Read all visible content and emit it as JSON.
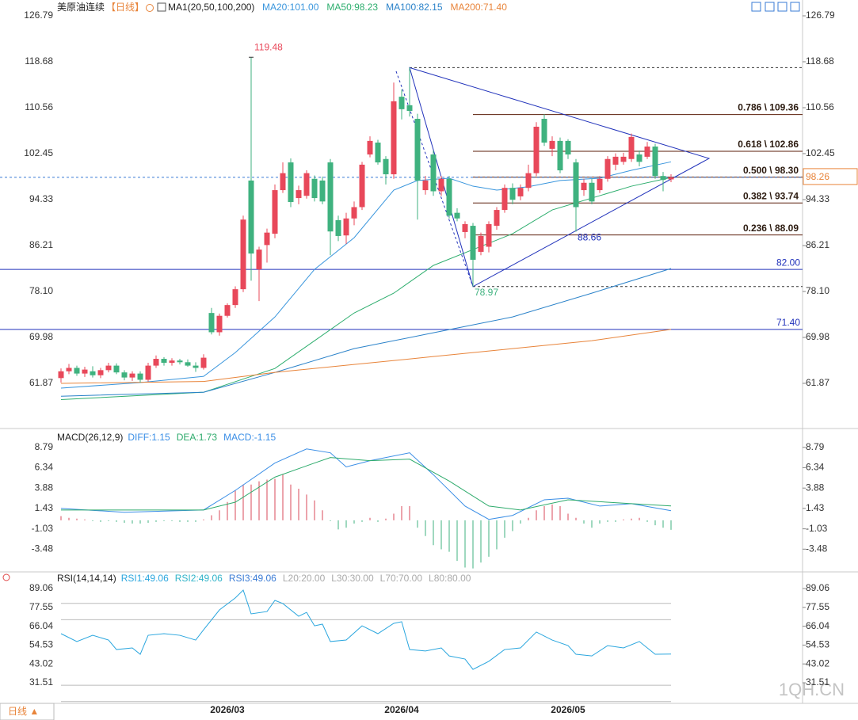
{
  "toolbar": {
    "title": "美原油连续",
    "period": "【日线】",
    "indicator": "MA1(20,50,100,200)"
  },
  "footer": {
    "period_button": "日线 ▲",
    "watermark": "1QH.CN"
  },
  "chart_data": [
    {
      "type": "candlestick",
      "categories": [
        null,
        null,
        null,
        null,
        null,
        null,
        null,
        null,
        null,
        null,
        null,
        null,
        null,
        null,
        null,
        null,
        null,
        null,
        null,
        null,
        null,
        "2026/03",
        null,
        null,
        null,
        null,
        null,
        null,
        null,
        null,
        null,
        null,
        null,
        null,
        null,
        null,
        null,
        null,
        null,
        null,
        null,
        null,
        null,
        "2026/04",
        null,
        null,
        null,
        null,
        null,
        null,
        null,
        null,
        null,
        null,
        null,
        null,
        null,
        null,
        null,
        null,
        null,
        null,
        null,
        null,
        "2026/05",
        null,
        null,
        null,
        null,
        null,
        null,
        null,
        null,
        null,
        null,
        null,
        null,
        null
      ],
      "ohlc": [
        [
          62.8,
          64.5,
          62.0,
          64.0
        ],
        [
          64.0,
          65.3,
          63.5,
          64.6
        ],
        [
          64.6,
          65.0,
          63.2,
          63.6
        ],
        [
          63.6,
          64.8,
          63.0,
          64.3
        ],
        [
          64.0,
          64.9,
          62.9,
          63.3
        ],
        [
          63.3,
          64.6,
          62.8,
          64.2
        ],
        [
          64.2,
          65.5,
          63.8,
          65.0
        ],
        [
          65.0,
          65.4,
          63.5,
          63.8
        ],
        [
          63.8,
          64.2,
          62.4,
          62.9
        ],
        [
          62.9,
          64.0,
          62.3,
          63.6
        ],
        [
          63.6,
          64.0,
          62.0,
          62.5
        ],
        [
          62.5,
          65.5,
          62.2,
          65.0
        ],
        [
          65.0,
          66.8,
          64.6,
          66.2
        ],
        [
          66.2,
          66.5,
          65.0,
          65.5
        ],
        [
          65.5,
          66.3,
          65.0,
          65.9
        ],
        [
          65.9,
          66.2,
          65.2,
          65.6
        ],
        [
          65.6,
          66.1,
          64.8,
          65.0
        ],
        [
          65.0,
          65.6,
          63.9,
          64.6
        ],
        [
          64.6,
          67.0,
          64.3,
          66.4
        ],
        [
          74.3,
          75.2,
          70.5,
          70.9
        ],
        [
          70.9,
          74.2,
          70.3,
          73.8
        ],
        [
          73.8,
          76.0,
          73.5,
          75.7
        ],
        [
          75.7,
          79.0,
          75.2,
          78.5
        ],
        [
          78.5,
          91.5,
          78.0,
          90.8
        ],
        [
          97.7,
          119.48,
          80.0,
          84.8
        ],
        [
          82.0,
          86.0,
          76.4,
          85.5
        ],
        [
          86.3,
          89.2,
          83.2,
          88.5
        ],
        [
          88.3,
          97.0,
          87.5,
          96.0
        ],
        [
          96.0,
          100.9,
          95.5,
          99.0
        ],
        [
          100.9,
          101.6,
          93.0,
          93.9
        ],
        [
          94.6,
          96.8,
          93.5,
          96.0
        ],
        [
          95.0,
          99.5,
          94.5,
          99.0
        ],
        [
          98.0,
          98.6,
          94.0,
          94.6
        ],
        [
          97.7,
          98.4,
          93.5,
          94.0
        ],
        [
          100.9,
          101.5,
          84.5,
          88.7
        ],
        [
          90.7,
          91.5,
          87.0,
          87.9
        ],
        [
          88.0,
          92.0,
          86.5,
          91.0
        ],
        [
          91.0,
          94.0,
          89.8,
          93.0
        ],
        [
          93.0,
          101.0,
          92.5,
          100.5
        ],
        [
          102.3,
          105.5,
          101.8,
          104.7
        ],
        [
          104.4,
          104.9,
          100.5,
          100.9
        ],
        [
          101.5,
          102.0,
          97.0,
          98.8
        ],
        [
          98.8,
          115.0,
          98.0,
          111.7
        ],
        [
          112.5,
          113.8,
          108.5,
          110.3
        ],
        [
          111.0,
          117.64,
          109.0,
          110.0
        ],
        [
          108.6,
          109.5,
          90.8,
          97.7
        ],
        [
          96.0,
          98.5,
          95.2,
          97.7
        ],
        [
          102.3,
          103.0,
          95.0,
          95.8
        ],
        [
          95.8,
          98.5,
          95.0,
          98.0
        ],
        [
          98.0,
          98.5,
          91.0,
          91.5
        ],
        [
          92.0,
          92.8,
          90.5,
          91.0
        ],
        [
          88.6,
          90.5,
          87.5,
          90.0
        ],
        [
          89.7,
          90.2,
          78.97,
          83.7
        ],
        [
          85.1,
          88.5,
          84.5,
          87.9
        ],
        [
          86.0,
          90.5,
          85.0,
          90.0
        ],
        [
          89.7,
          93.0,
          89.0,
          92.5
        ],
        [
          92.5,
          97.0,
          92.0,
          96.4
        ],
        [
          96.4,
          97.2,
          93.5,
          94.3
        ],
        [
          94.9,
          97.0,
          94.2,
          96.4
        ],
        [
          96.4,
          100.5,
          95.8,
          99.0
        ],
        [
          99.0,
          108.0,
          98.5,
          107.2
        ],
        [
          108.6,
          109.4,
          103.8,
          104.4
        ],
        [
          103.3,
          105.5,
          102.0,
          104.7
        ],
        [
          104.7,
          105.3,
          99.0,
          99.5
        ],
        [
          104.7,
          105.0,
          101.5,
          102.3
        ],
        [
          100.9,
          101.5,
          88.66,
          93.0
        ],
        [
          96.0,
          98.0,
          95.0,
          97.3
        ],
        [
          97.3,
          98.0,
          93.5,
          94.0
        ],
        [
          96.0,
          98.5,
          95.5,
          98.0
        ],
        [
          98.0,
          102.0,
          97.5,
          101.5
        ],
        [
          100.5,
          102.5,
          99.5,
          101.9
        ],
        [
          101.0,
          102.6,
          100.5,
          101.9
        ],
        [
          101.5,
          106.0,
          101.0,
          105.4
        ],
        [
          102.3,
          103.0,
          100.2,
          101.0
        ],
        [
          101.9,
          104.5,
          101.5,
          103.7
        ],
        [
          103.7,
          104.2,
          98.0,
          98.5
        ],
        [
          98.5,
          99.2,
          95.8,
          97.8
        ],
        [
          97.9,
          98.8,
          97.4,
          98.26
        ]
      ],
      "up_color": "#e8485a",
      "down_color": "#3fb27f",
      "ylim": [
        54.03,
        128.89
      ],
      "yticks": [
        126.79,
        {
          "value": 118.68,
          "label": "118.68"
        },
        110.56,
        102.45,
        94.33,
        86.21,
        {
          "value": 78.1,
          "label": "78.10"
        },
        69.98,
        61.87
      ],
      "series": [
        {
          "name": "MA20:101.00",
          "color": "#3a96dd",
          "x": [
            0,
            10,
            18,
            22,
            27,
            32,
            37,
            42,
            45,
            49,
            52,
            55,
            59,
            63,
            68,
            72,
            77
          ],
          "values": [
            61.03,
            62.0,
            63.1,
            67.3,
            73.6,
            82.0,
            87.6,
            96.0,
            97.7,
            98.1,
            96.7,
            96.0,
            96.6,
            97.7,
            98.1,
            99.5,
            101.0
          ]
        },
        {
          "name": "MA50:98.23",
          "color": "#2eae6e",
          "x": [
            0,
            18,
            27,
            32,
            37,
            42,
            47,
            52,
            57,
            62,
            67,
            72,
            77
          ],
          "values": [
            59.0,
            60.3,
            64.5,
            69.4,
            74.3,
            77.8,
            82.7,
            85.5,
            88.3,
            92.5,
            94.6,
            96.7,
            98.23
          ]
        },
        {
          "name": "MA100:82.15",
          "color": "#2a82c9",
          "x": [
            0,
            18,
            27,
            37,
            47,
            57,
            67,
            77
          ],
          "values": [
            59.6,
            60.3,
            63.8,
            68.0,
            70.8,
            73.6,
            77.8,
            82.15
          ]
        },
        {
          "name": "MA200:71.40",
          "color": "#e8843a",
          "x": [
            0,
            18,
            27,
            37,
            47,
            57,
            67,
            77
          ],
          "values": [
            61.87,
            62.2,
            63.8,
            65.2,
            66.6,
            68.0,
            69.4,
            71.4
          ]
        }
      ],
      "hlines": [
        {
          "value": 82,
          "label": "82.00"
        },
        {
          "value": 71.4,
          "label": "71.40"
        }
      ],
      "fib": [
        {
          "value": 109.36,
          "label": "0.786 \\ 109.36"
        },
        {
          "value": 102.86,
          "label": "0.618 \\ 102.86"
        },
        {
          "value": 98.3,
          "label": "0.500 \\ 98.30"
        },
        {
          "value": 93.74,
          "label": "0.382 \\ 93.74"
        },
        {
          "value": 88.09,
          "label": "0.236 \\ 88.09"
        }
      ],
      "fib_range": [
        {
          "x": 44,
          "value": 117.64
        },
        {
          "x": 52,
          "value": 78.97
        }
      ],
      "triangle": {
        "x": [
          44,
          81.8,
          52
        ],
        "values": [
          117.64,
          101.6,
          78.97
        ]
      },
      "dashed_line": {
        "x": [
          42.3,
          52
        ],
        "values": [
          117.0,
          78.97
        ]
      },
      "last_price": 98.26,
      "annotations": [
        {
          "x": 24,
          "value": 119.48,
          "color": "#e8485a"
        },
        {
          "x": 65,
          "value": 88.66,
          "color": "#2233bb"
        },
        {
          "x": 52,
          "value": 78.97,
          "color": "#3fb27f"
        }
      ]
    },
    {
      "type": "macd",
      "title": "MACD(26,12,9)",
      "histogram": {
        "name": "MACD:-1.15",
        "up_color": "#d9495a",
        "down_color": "#3fb27f",
        "values": [
          0.5,
          0.3,
          0.2,
          0.1,
          -0.1,
          -0.2,
          -0.1,
          -0.2,
          -0.3,
          -0.4,
          -0.4,
          -0.3,
          -0.2,
          -0.1,
          -0.1,
          -0.2,
          -0.2,
          -0.2,
          0.1,
          0.6,
          1.2,
          2.2,
          3.6,
          4.3,
          4.3,
          4.7,
          4.9,
          5.0,
          5.5,
          4.3,
          3.8,
          3.1,
          2.4,
          1.2,
          -0.1,
          -1.1,
          -0.9,
          -0.4,
          -0.2,
          0.3,
          -0.2,
          0.2,
          0.8,
          1.7,
          1.7,
          -0.9,
          -1.9,
          -3.0,
          -3.5,
          -3.8,
          -4.9,
          -5.7,
          -5.8,
          -5.1,
          -4.4,
          -3.5,
          -2.1,
          -1.3,
          -0.4,
          0.3,
          1.2,
          1.7,
          1.9,
          1.7,
          0.8,
          0.3,
          -0.4,
          -0.9,
          -0.4,
          -0.2,
          -0.2,
          0.1,
          0.2,
          0.3,
          -0.2,
          -0.6,
          -0.9,
          -1.15
        ]
      },
      "series": [
        {
          "name": "DIFF:1.15",
          "color": "#3a8ee6",
          "x": [
            0,
            8,
            18,
            22,
            27,
            31,
            34,
            36,
            39,
            44,
            47,
            51,
            54,
            57,
            61,
            64,
            68,
            72,
            77
          ],
          "values": [
            1.43,
            0.96,
            1.24,
            3.6,
            6.9,
            8.6,
            8.13,
            6.43,
            7.18,
            8.13,
            5.49,
            1.71,
            0.11,
            0.58,
            2.47,
            2.66,
            1.71,
            2.0,
            1.15
          ]
        },
        {
          "name": "DEA:1.73",
          "color": "#2eab6c",
          "x": [
            0,
            18,
            22,
            27,
            32,
            34,
            39,
            44,
            49,
            54,
            58,
            64,
            72,
            77
          ],
          "values": [
            1.24,
            1.24,
            2.18,
            5.2,
            6.9,
            7.56,
            7.18,
            7.37,
            4.73,
            1.71,
            1.24,
            2.47,
            2.0,
            1.73
          ]
        }
      ],
      "ylim": [
        -6.03,
        10.39
      ],
      "yticks": [
        8.79,
        6.34,
        3.88,
        1.43,
        -1.03,
        -3.48
      ]
    },
    {
      "type": "line",
      "title": "RSI(14,14,14)",
      "series": [
        {
          "name": "RSI1:49.06",
          "color": "#2aa6de",
          "x": [
            0,
            2,
            4,
            6,
            7,
            9,
            10,
            11,
            13,
            15,
            17,
            18,
            20,
            22,
            23,
            24,
            26,
            27,
            28,
            30,
            31,
            32,
            33,
            34,
            36,
            38,
            40,
            42,
            43,
            44,
            46,
            48,
            49,
            51,
            52,
            54,
            56,
            58,
            60,
            62,
            64,
            65,
            67,
            69,
            71,
            73,
            75,
            77
          ],
          "values": [
            61.5,
            56.7,
            60.5,
            57.6,
            51.8,
            52.8,
            48.9,
            60.5,
            61.5,
            60.5,
            57.6,
            63.9,
            76.0,
            83.3,
            88.1,
            73.6,
            75.0,
            81.8,
            79.9,
            72.1,
            74.5,
            66.3,
            67.3,
            56.7,
            57.6,
            66.3,
            61.5,
            67.8,
            68.8,
            51.8,
            50.9,
            52.8,
            47.9,
            46.0,
            39.7,
            44.6,
            51.8,
            52.8,
            62.5,
            57.6,
            54.2,
            48.9,
            47.9,
            54.2,
            52.8,
            56.7,
            48.9,
            49.06
          ]
        }
      ],
      "other_lines": [
        {
          "name": "RSI2:49.06",
          "color": "#2fb3c9"
        },
        {
          "name": "RSI3:49.06",
          "color": "#3a7bd5"
        }
      ],
      "levels": [
        {
          "value": 20,
          "label": "L20:20.00"
        },
        {
          "value": 30,
          "label": "L30:30.00"
        },
        {
          "value": 70,
          "label": "L70:70.00"
        },
        {
          "value": 80,
          "label": "L80:80.00"
        }
      ],
      "ylim": [
        18.94,
        92.93
      ],
      "yticks": [
        89.06,
        77.55,
        66.04,
        54.53,
        43.02,
        31.51
      ]
    }
  ]
}
